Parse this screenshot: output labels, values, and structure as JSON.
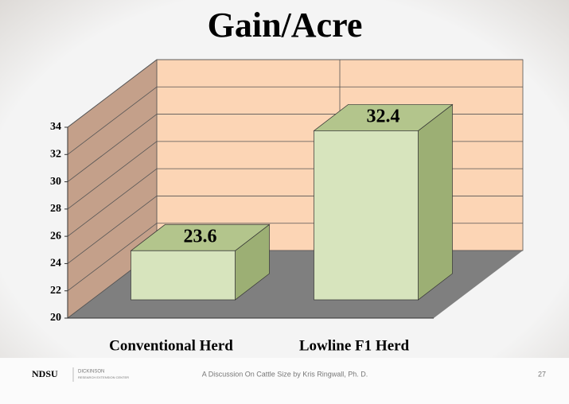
{
  "chart_data": {
    "type": "bar3d",
    "title": "Gain/Acre",
    "categories": [
      "Conventional Herd",
      "Lowline F1 Herd"
    ],
    "values": [
      23.6,
      32.4
    ],
    "ylim": [
      20,
      34
    ],
    "yticks": [
      20,
      22,
      24,
      26,
      28,
      30,
      32,
      34
    ],
    "grid": true,
    "colors": {
      "front": "#d7e4bd",
      "side": "#9caf74",
      "top": "#b3c58c",
      "back_wall": "#fcd5b5",
      "side_wall": "#c4a08a",
      "floor": "#7f7f7f"
    }
  },
  "footer": {
    "logo": "NDSU",
    "center_name": "DICKINSON",
    "center_sub": "RESEARCH EXTENSION CENTER",
    "text": "A Discussion On Cattle Size by Kris Ringwall, Ph. D.",
    "page": "27"
  }
}
